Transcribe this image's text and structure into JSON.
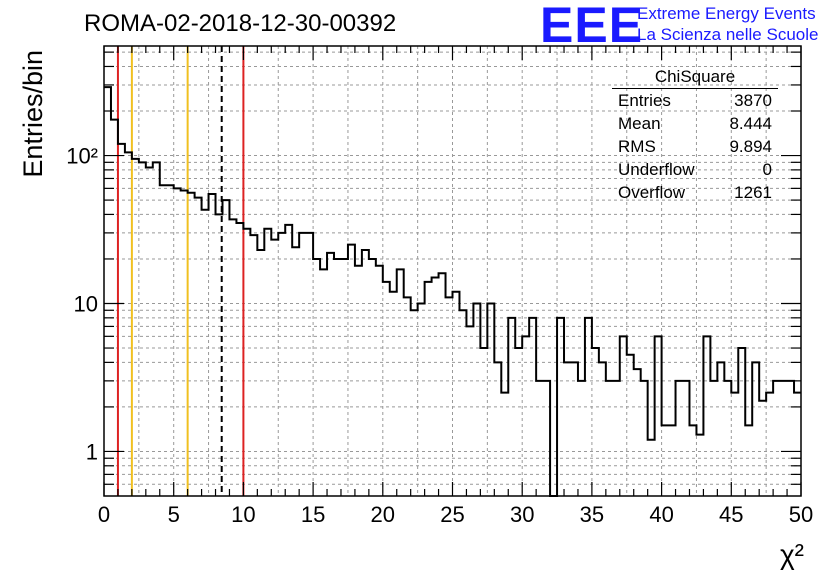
{
  "title": "ROMA-02-2018-12-30-00392",
  "logo": {
    "mark": "EEE",
    "line1": "Extreme Energy Events",
    "line2": "La Scienza nelle Scuole"
  },
  "stats": {
    "name": "ChiSquare",
    "rows": [
      {
        "label": "Entries",
        "value": "3870"
      },
      {
        "label": "Mean",
        "value": "8.444"
      },
      {
        "label": "RMS",
        "value": "9.894"
      },
      {
        "label": "Underflow",
        "value": "0"
      },
      {
        "label": "Overflow",
        "value": "1261"
      }
    ]
  },
  "chart_data": {
    "type": "histogram",
    "xlabel": "χ²",
    "ylabel": "Entries/bin",
    "xlim": [
      0,
      50
    ],
    "ylim": [
      0.5,
      550
    ],
    "yscale": "log",
    "grid": true,
    "bin_width": 0.5,
    "x_ticks": [
      0,
      5,
      10,
      15,
      20,
      25,
      30,
      35,
      40,
      45,
      50
    ],
    "x_tick_labels": [
      "0",
      "5",
      "10",
      "15",
      "20",
      "25",
      "30",
      "35",
      "40",
      "45",
      "50"
    ],
    "y_ticks": [
      1,
      10,
      100
    ],
    "y_tick_labels": [
      "1",
      "10",
      "10²"
    ],
    "values": [
      290,
      175,
      120,
      105,
      95,
      90,
      83,
      90,
      63,
      63,
      60,
      58,
      56,
      52,
      43,
      55,
      40,
      50,
      37,
      35,
      32,
      29,
      23,
      32,
      27,
      30,
      34,
      24,
      30,
      30,
      20,
      17,
      22,
      20,
      20,
      25,
      18,
      23,
      20,
      18,
      14,
      12,
      17,
      11,
      9,
      10,
      14,
      15,
      16,
      11,
      12,
      9,
      7,
      10,
      5,
      10,
      4,
      2.5,
      8,
      5,
      6,
      8,
      3,
      3,
      0,
      8,
      4,
      4,
      3,
      8,
      5,
      4,
      3,
      3,
      6,
      4.5,
      3.6,
      3,
      1.2,
      6,
      1.5,
      1.5,
      3,
      3,
      1.5,
      1.3,
      6,
      3,
      4,
      3,
      2.5,
      5,
      1.5,
      4,
      2.2,
      2.5,
      3,
      3,
      3,
      2.5
    ],
    "markers": [
      {
        "x": 1,
        "color": "#dd2222",
        "style": "solid"
      },
      {
        "x": 2,
        "color": "#f0c020",
        "style": "solid"
      },
      {
        "x": 6,
        "color": "#f0c020",
        "style": "solid"
      },
      {
        "x": 8.444,
        "color": "#000000",
        "style": "dashed"
      },
      {
        "x": 10,
        "color": "#dd2222",
        "style": "solid"
      }
    ]
  }
}
